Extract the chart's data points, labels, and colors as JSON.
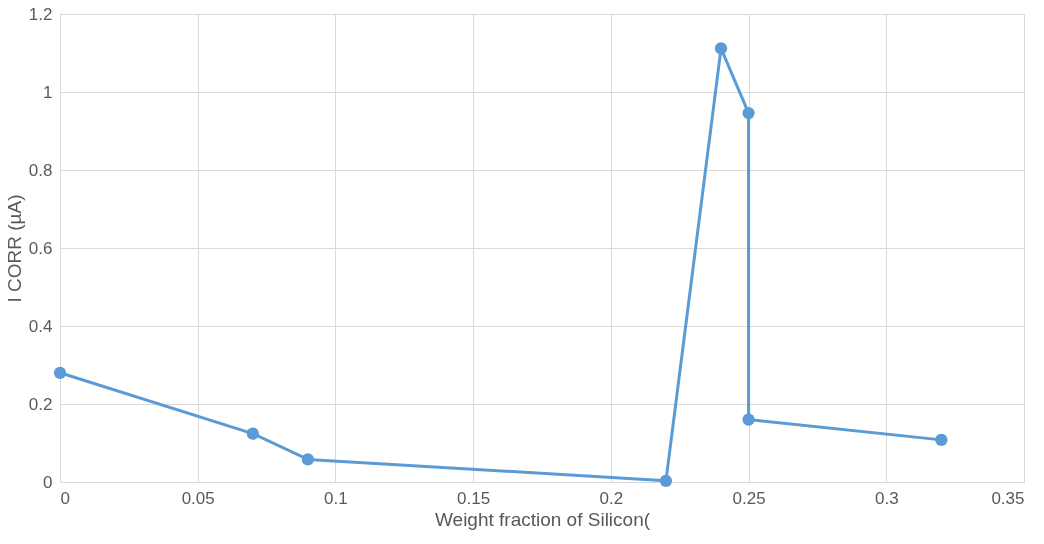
{
  "chart_data": {
    "type": "line",
    "xlabel": "Weight fraction of Silicon(",
    "ylabel": "I CORR (µA)",
    "x": [
      0,
      0.07,
      0.09,
      0.22,
      0.24,
      0.25,
      0.25,
      0.32
    ],
    "series": [
      {
        "color": "#5b9bd5",
        "values": [
          0.28,
          0.124,
          0.058,
          0.003,
          1.112,
          0.946,
          0.16,
          0.108
        ]
      }
    ],
    "xlim": [
      0,
      0.35
    ],
    "xticks": [
      0,
      0.05,
      0.1,
      0.15,
      0.2,
      0.25,
      0.3,
      0.35
    ],
    "ylim": [
      0,
      1.2
    ],
    "yticks": [
      0,
      0.2,
      0.4,
      0.6,
      0.8,
      1,
      1.2
    ],
    "grid": true,
    "marker": "circle",
    "line_style": "solid"
  }
}
